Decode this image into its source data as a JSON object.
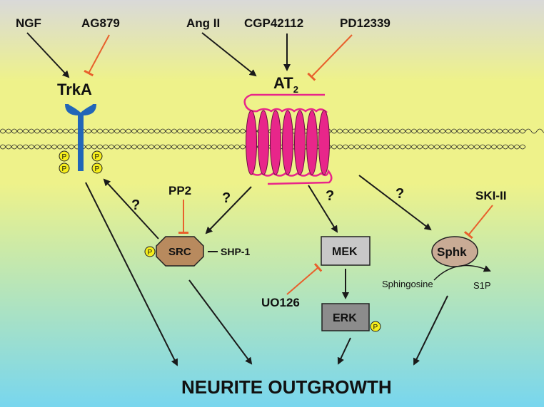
{
  "inputs": {
    "ngf": "NGF",
    "ag879": "AG879",
    "ang_ii": "Ang II",
    "cgp42112": "CGP42112",
    "pd12339": "PD12339"
  },
  "receptors": {
    "trka": "TrkA",
    "at2_main": "AT",
    "at2_sub": "2"
  },
  "inhibitors": {
    "pp2": "PP2",
    "uo126": "UO126",
    "ski_ii": "SKI-II"
  },
  "nodes": {
    "src": "SRC",
    "shp1": "SHP-1",
    "mek": "MEK",
    "erk": "ERK",
    "sphk": "Sphk",
    "sphingosine": "Sphingosine",
    "s1p": "S1P",
    "phospho": "P"
  },
  "unknown_link": "?",
  "outcome": "NEURITE OUTGROWTH",
  "colors": {
    "background_top": "#d9d9d9",
    "background_yellow": "#eef28a",
    "background_bottom": "#78d6ee",
    "arrow": "#1a1a1a",
    "inhibition": "#e8602c",
    "trka_receptor": "#2266b8",
    "at2_receptor": "#e8268a",
    "phospho_fill": "#f6ee1c",
    "src_fill": "#b88a5e",
    "box_fill": "#c8c8c8",
    "sphk_fill": "#c9ab95"
  }
}
